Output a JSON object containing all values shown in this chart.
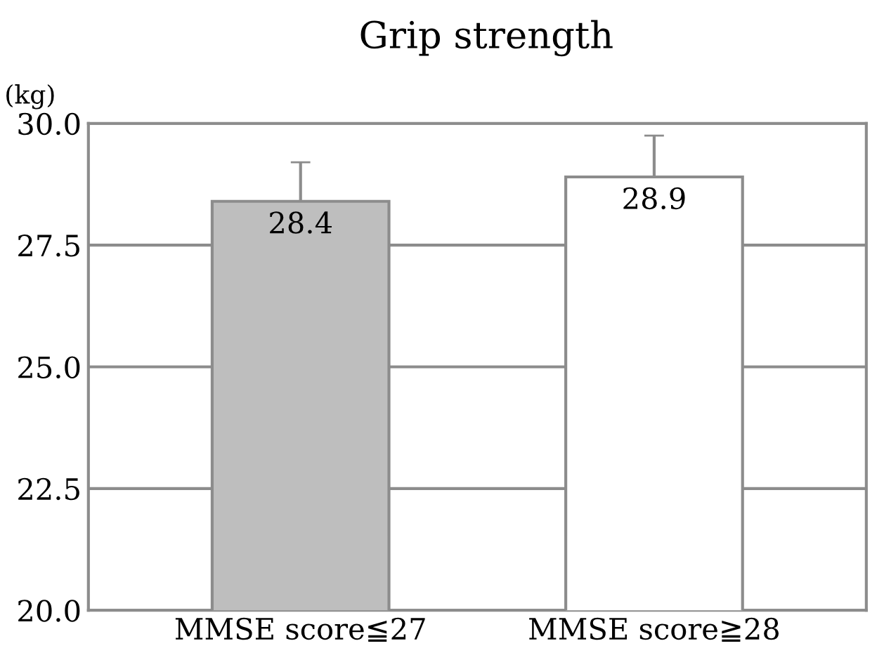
{
  "chart_data": {
    "type": "bar",
    "title": "Grip strength",
    "ylabel": "(kg)",
    "categories": [
      "MMSE score≦27",
      "MMSE score≧28"
    ],
    "values": [
      28.4,
      28.9
    ],
    "colors": [
      "#bebebe",
      "#ffffff"
    ],
    "errors": [
      [
        28.4,
        29.2
      ],
      [
        28.9,
        29.75
      ]
    ],
    "data_labels": true,
    "ylim": [
      20.0,
      30.0
    ],
    "yticks": [
      {
        "value": 20,
        "label": "20.0"
      },
      {
        "value": 22.5,
        "label": "22.5"
      },
      {
        "value": 25,
        "label": "25.0"
      },
      {
        "value": 27.5,
        "label": "27.5"
      },
      {
        "value": 30,
        "label": "30.0"
      }
    ],
    "grid": "y",
    "legend": false
  }
}
